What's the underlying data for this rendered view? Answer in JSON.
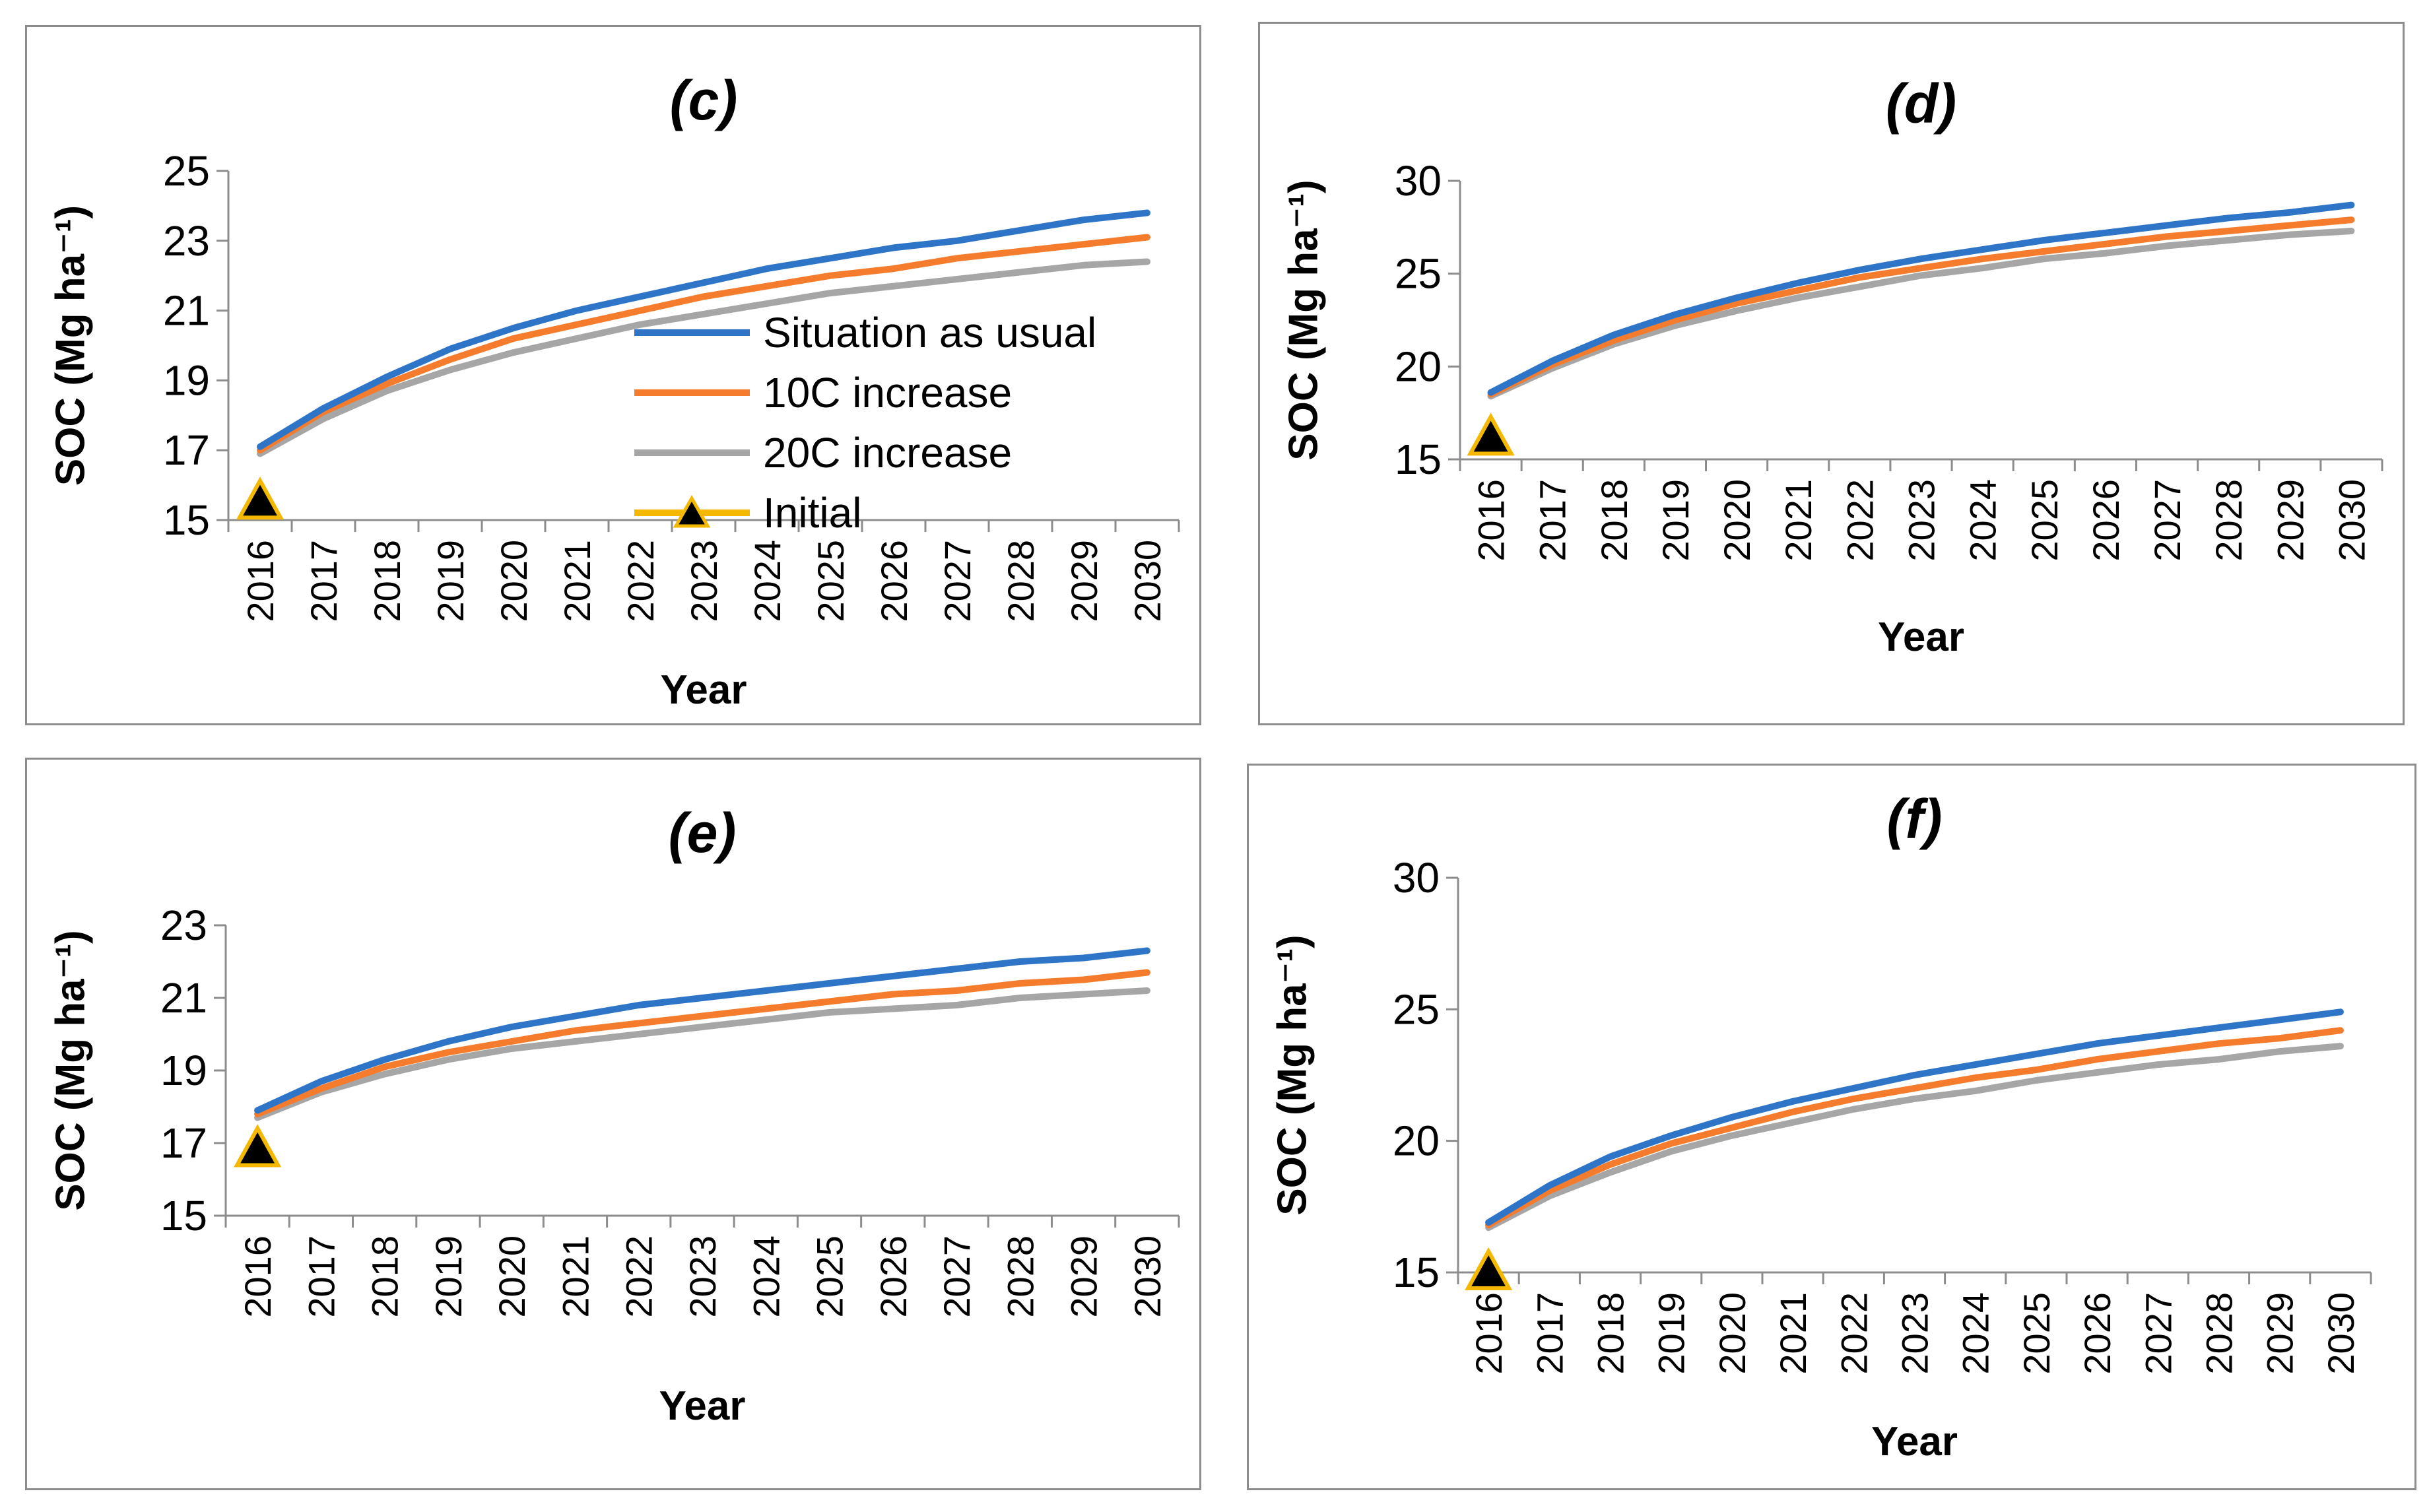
{
  "colors": {
    "situation": "#2e75c8",
    "increase10": "#f47c2c",
    "increase20": "#a6a6a6",
    "initial_fill": "#000000",
    "initial_edge": "#f5b800",
    "axis": "#8c8c8c"
  },
  "legend": {
    "situation": "Situation as usual",
    "increase10": "10C increase",
    "increase20": "20C increase",
    "initial": "Initial"
  },
  "chart_data": [
    {
      "type": "line",
      "title": "(c)",
      "xlabel": "Year",
      "ylabel": "SOC (Mg ha⁻¹)",
      "x": [
        "2016",
        "2017",
        "2018",
        "2019",
        "2020",
        "2021",
        "2022",
        "2023",
        "2024",
        "2025",
        "2026",
        "2027",
        "2028",
        "2029",
        "2030"
      ],
      "ylim": [
        15,
        25
      ],
      "yticks": [
        "15",
        "17",
        "19",
        "21",
        "23",
        "25"
      ],
      "series": [
        {
          "name": "Situation as usual",
          "key": "situation",
          "values": [
            17.1,
            18.2,
            19.1,
            19.9,
            20.5,
            21.0,
            21.4,
            21.8,
            22.2,
            22.5,
            22.8,
            23.0,
            23.3,
            23.6,
            23.8
          ]
        },
        {
          "name": "10C increase",
          "key": "increase10",
          "values": [
            17.0,
            18.1,
            18.9,
            19.6,
            20.2,
            20.6,
            21.0,
            21.4,
            21.7,
            22.0,
            22.2,
            22.5,
            22.7,
            22.9,
            23.1
          ]
        },
        {
          "name": "20C increase",
          "key": "increase20",
          "values": [
            16.9,
            17.9,
            18.7,
            19.3,
            19.8,
            20.2,
            20.6,
            20.9,
            21.2,
            21.5,
            21.7,
            21.9,
            22.1,
            22.3,
            22.4
          ]
        }
      ],
      "initial": {
        "x": "2016",
        "value": 15.6
      },
      "legend_position": "center"
    },
    {
      "type": "line",
      "title": "(d)",
      "xlabel": "Year",
      "ylabel": "SOC (Mg ha⁻¹)",
      "x": [
        "2016",
        "2017",
        "2018",
        "2019",
        "2020",
        "2021",
        "2022",
        "2023",
        "2024",
        "2025",
        "2026",
        "2027",
        "2028",
        "2029",
        "2030"
      ],
      "ylim": [
        15,
        30
      ],
      "yticks": [
        "15",
        "20",
        "25",
        "30"
      ],
      "series": [
        {
          "name": "Situation as usual",
          "key": "situation",
          "values": [
            18.6,
            20.3,
            21.7,
            22.8,
            23.7,
            24.5,
            25.2,
            25.8,
            26.3,
            26.8,
            27.2,
            27.6,
            28.0,
            28.3,
            28.7
          ]
        },
        {
          "name": "10C increase",
          "key": "increase10",
          "values": [
            18.5,
            20.1,
            21.4,
            22.5,
            23.4,
            24.1,
            24.8,
            25.3,
            25.8,
            26.2,
            26.6,
            27.0,
            27.3,
            27.6,
            27.9
          ]
        },
        {
          "name": "20C increase",
          "key": "increase20",
          "values": [
            18.4,
            19.9,
            21.2,
            22.2,
            23.0,
            23.7,
            24.3,
            24.9,
            25.3,
            25.8,
            26.1,
            26.5,
            26.8,
            27.1,
            27.3
          ]
        }
      ],
      "initial": {
        "x": "2016",
        "value": 16.3
      }
    },
    {
      "type": "line",
      "title": "(e)",
      "xlabel": "Year",
      "ylabel": "SOC (Mg ha⁻¹)",
      "x": [
        "2016",
        "2017",
        "2018",
        "2019",
        "2020",
        "2021",
        "2022",
        "2023",
        "2024",
        "2025",
        "2026",
        "2027",
        "2028",
        "2029",
        "2030"
      ],
      "ylim": [
        15,
        23
      ],
      "yticks": [
        "15",
        "17",
        "19",
        "21",
        "23"
      ],
      "series": [
        {
          "name": "Situation as usual",
          "key": "situation",
          "values": [
            17.9,
            18.7,
            19.3,
            19.8,
            20.2,
            20.5,
            20.8,
            21.0,
            21.2,
            21.4,
            21.6,
            21.8,
            22.0,
            22.1,
            22.3
          ]
        },
        {
          "name": "10C increase",
          "key": "increase10",
          "values": [
            17.8,
            18.5,
            19.1,
            19.5,
            19.8,
            20.1,
            20.3,
            20.5,
            20.7,
            20.9,
            21.1,
            21.2,
            21.4,
            21.5,
            21.7
          ]
        },
        {
          "name": "20C increase",
          "key": "increase20",
          "values": [
            17.7,
            18.4,
            18.9,
            19.3,
            19.6,
            19.8,
            20.0,
            20.2,
            20.4,
            20.6,
            20.7,
            20.8,
            21.0,
            21.1,
            21.2
          ]
        }
      ],
      "initial": {
        "x": "2016",
        "value": 16.9
      }
    },
    {
      "type": "line",
      "title": "(f)",
      "xlabel": "Year",
      "ylabel": "SOC (Mg ha⁻¹)",
      "x": [
        "2016",
        "2017",
        "2018",
        "2019",
        "2020",
        "2021",
        "2022",
        "2023",
        "2024",
        "2025",
        "2026",
        "2027",
        "2028",
        "2029",
        "2030"
      ],
      "ylim": [
        15,
        30
      ],
      "yticks": [
        "15",
        "20",
        "25",
        "30"
      ],
      "series": [
        {
          "name": "Situation as usual",
          "key": "situation",
          "values": [
            16.9,
            18.3,
            19.4,
            20.2,
            20.9,
            21.5,
            22.0,
            22.5,
            22.9,
            23.3,
            23.7,
            24.0,
            24.3,
            24.6,
            24.9
          ]
        },
        {
          "name": "10C increase",
          "key": "increase10",
          "values": [
            16.8,
            18.1,
            19.1,
            19.9,
            20.5,
            21.1,
            21.6,
            22.0,
            22.4,
            22.7,
            23.1,
            23.4,
            23.7,
            23.9,
            24.2
          ]
        },
        {
          "name": "20C increase",
          "key": "increase20",
          "values": [
            16.7,
            17.9,
            18.8,
            19.6,
            20.2,
            20.7,
            21.2,
            21.6,
            21.9,
            22.3,
            22.6,
            22.9,
            23.1,
            23.4,
            23.6
          ]
        }
      ],
      "initial": {
        "x": "2016",
        "value": 15.1
      }
    }
  ]
}
